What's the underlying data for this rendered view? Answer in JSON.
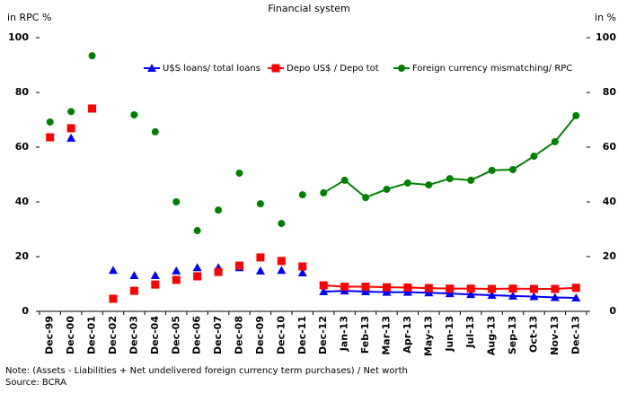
{
  "chart_data": {
    "type": "line",
    "title": "Financial system",
    "y_label": "in RPC %",
    "y2_label": "in %",
    "note": "Note: (Assets - Liabilities + Net undelivered foreign currency term purchases) / Net worth",
    "source": "Source: BCRA",
    "categories": [
      "Dec-99",
      "Dec-00",
      "Dec-01",
      "Dec-02",
      "Dec-03",
      "Dec-04",
      "Dec-05",
      "Dec-06",
      "Dec-07",
      "Dec-08",
      "Dec-09",
      "Dec-10",
      "Dec-11",
      "Dec-12",
      "Jan-13",
      "Feb-13",
      "Mar-13",
      "Apr-13",
      "May-13",
      "Jun-13",
      "Jul-13",
      "Aug-13",
      "Sep-13",
      "Oct-13",
      "Nov-13",
      "Dec-13"
    ],
    "line_start_category": "Dec-12",
    "series": [
      {
        "name": "U$S loans/ total loans",
        "color": "#0000ff",
        "marker": "triangle",
        "values": [
          null,
          63.3,
          74,
          15,
          13.1,
          13.1,
          14.8,
          16,
          16,
          16,
          14.8,
          15,
          14.1,
          7.2,
          7.5,
          7.2,
          7,
          7,
          6.8,
          6.5,
          6.2,
          5.9,
          5.6,
          5.4,
          5.1,
          4.9
        ]
      },
      {
        "name": "Depo US$ / Depo tot",
        "color": "#ff0000",
        "marker": "square",
        "values": [
          63.6,
          66.9,
          74.1,
          4.6,
          7.5,
          9.8,
          11.5,
          12.8,
          14.4,
          16.7,
          19.7,
          18.4,
          16.4,
          9.5,
          9,
          9,
          8.8,
          8.7,
          8.5,
          8.3,
          8.3,
          8.2,
          8.3,
          8.2,
          8.2,
          8.6
        ]
      },
      {
        "name": "Foreign currency mismatching/ RPC",
        "color": "#008000",
        "marker": "circle",
        "values": [
          69.2,
          73,
          93.4,
          null,
          71.8,
          65.6,
          40,
          29.5,
          37,
          50.5,
          39.3,
          32.1,
          42.6,
          43.3,
          47.9,
          41.6,
          44.6,
          46.9,
          46.2,
          48.5,
          47.9,
          51.5,
          51.8,
          56.7,
          62,
          71.5
        ]
      }
    ],
    "ylim": [
      0,
      100
    ],
    "yticks": [
      0,
      20,
      40,
      60,
      80,
      100
    ],
    "y2lim": [
      0,
      100
    ],
    "y2ticks": [
      0,
      20,
      40,
      60,
      80,
      100
    ]
  }
}
